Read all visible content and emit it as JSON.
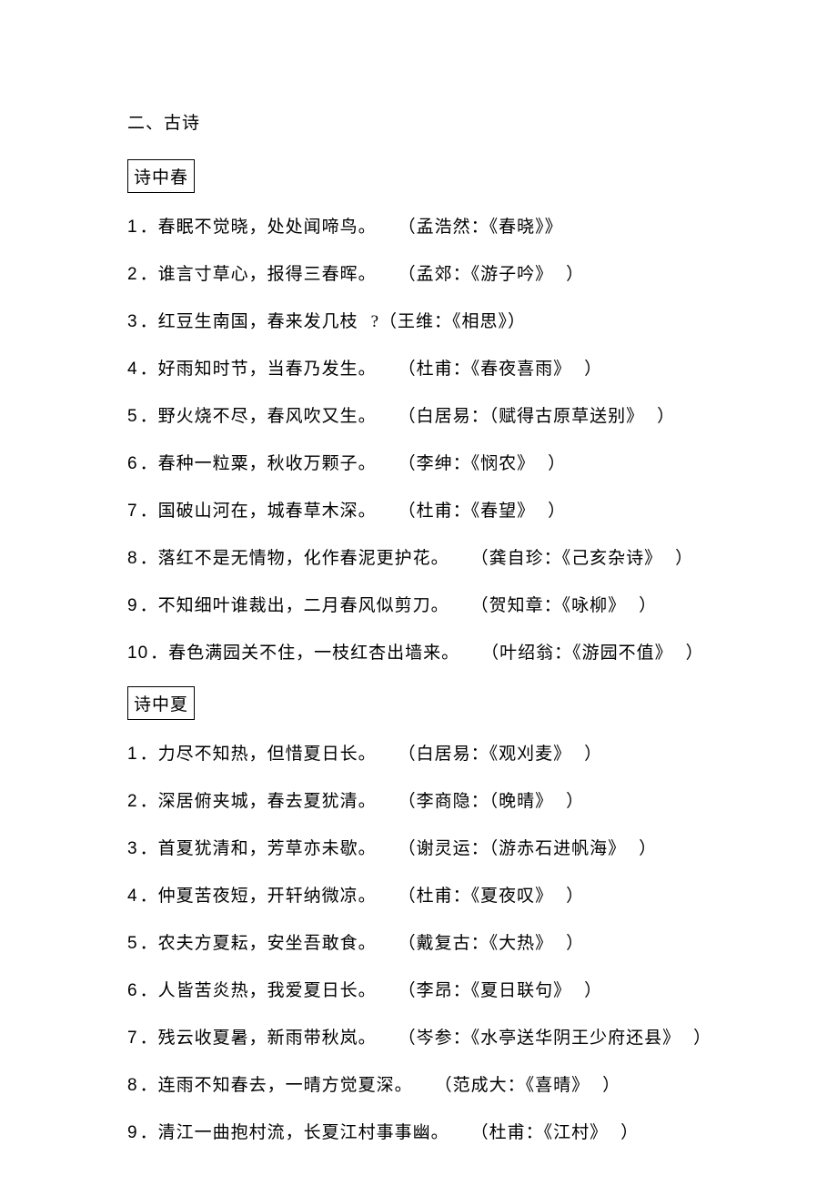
{
  "section_heading": "二、古诗",
  "groups": [
    {
      "title": "诗中春",
      "items": [
        {
          "num": "1",
          "verse": "．春眠不觉晓，处处闻啼鸟。",
          "attr": "（孟浩然：《春晓》》"
        },
        {
          "num": "2",
          "verse": "．谁言寸草心，报得三春晖。",
          "attr": "（孟郊：《游子吟》",
          "tail": "）"
        },
        {
          "num": "3",
          "verse": "．红豆生南国，春来发几枝",
          "mid": "?（王维：《相思》）"
        },
        {
          "num": "4",
          "verse": "．好雨知时节，当春乃发生。",
          "attr": "（杜甫：《春夜喜雨》",
          "tail": "）"
        },
        {
          "num": "5",
          "verse": "．野火烧不尽，春风吹又生。",
          "attr": "（白居易：（赋得古原草送别》",
          "tail": "）"
        },
        {
          "num": "6",
          "verse": "．春种一粒粟，秋收万颗子。",
          "attr": "（李绅：《悯农》",
          "tail": "）"
        },
        {
          "num": "7",
          "verse": "．国破山河在，城春草木深。",
          "attr": "（杜甫：《春望》",
          "tail": "）"
        },
        {
          "num": "8",
          "verse": "．落红不是无情物，化作春泥更护花。",
          "attr": "（龚自珍：《己亥杂诗》",
          "tail": "）"
        },
        {
          "num": "9",
          "verse": "．不知细叶谁裁出，二月春风似剪刀。",
          "attr": "（贺知章：《咏柳》",
          "tail": "）"
        },
        {
          "num": "10",
          "verse": "．春色满园关不住，一枝红杏出墙来。",
          "attr": "（叶绍翁：《游园不值》",
          "tail": "）"
        }
      ]
    },
    {
      "title": "诗中夏",
      "items": [
        {
          "num": "1",
          "verse": "．力尽不知热，但惜夏日长。",
          "attr": "（白居易：《观刈麦》",
          "tail": "）"
        },
        {
          "num": "2",
          "verse": "．深居俯夹城，春去夏犹清。",
          "attr": "（李商隐：（晚晴》",
          "tail": "）"
        },
        {
          "num": "3",
          "verse": "．首夏犹清和，芳草亦未歇。",
          "attr": "（谢灵运：（游赤石进帆海》",
          "tail": "）"
        },
        {
          "num": "4",
          "verse": "．仲夏苦夜短，开轩纳微凉。",
          "attr": "（杜甫：《夏夜叹》",
          "tail": "）"
        },
        {
          "num": "5",
          "verse": "．农夫方夏耘，安坐吾敢食。",
          "attr": "（戴复古：《大热》",
          "tail": "）"
        },
        {
          "num": "6",
          "verse": "．人皆苦炎热，我爱夏日长。",
          "attr": "（李昂：《夏日联句》",
          "tail": "）"
        },
        {
          "num": "7",
          "verse": "．残云收夏暑，新雨带秋岚。",
          "attr": "（岑参：《水亭送华阴王少府还县》",
          "tail": "）"
        },
        {
          "num": "8",
          "verse": "．连雨不知春去，一晴方觉夏深。",
          "attr": "（范成大：《喜晴》",
          "tail": "）"
        },
        {
          "num": "9",
          "verse": "．清江一曲抱村流，长夏江村事事幽。",
          "attr": "（杜甫：《江村》",
          "tail": "）"
        }
      ]
    }
  ]
}
